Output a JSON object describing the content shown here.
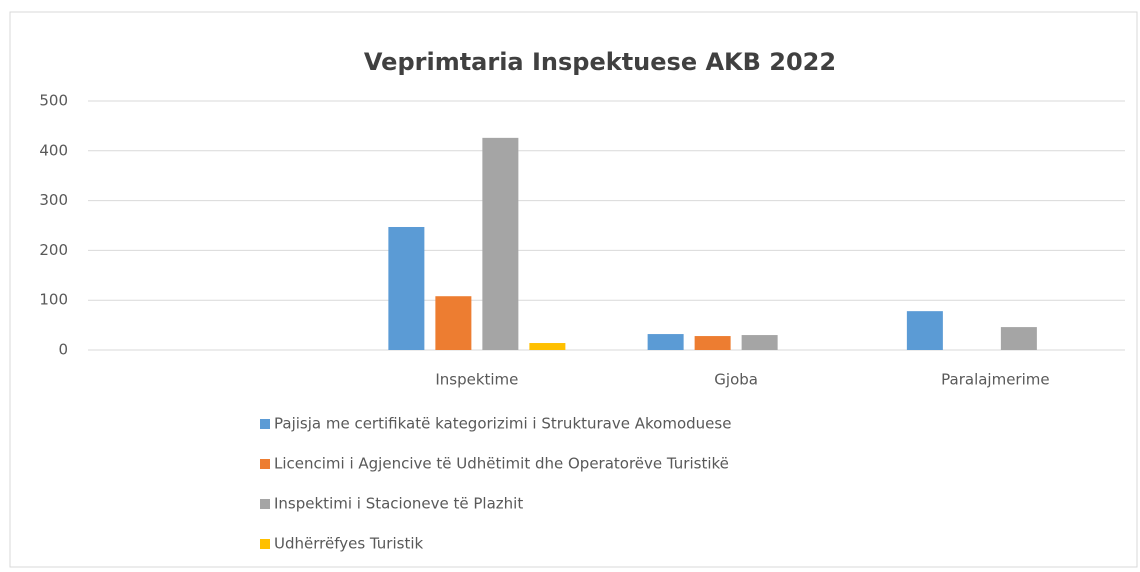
{
  "chart_data": {
    "type": "bar",
    "title": "Veprimtaria Inspektuese AKB 2022",
    "categories": [
      null,
      "Inspektime",
      "Gjoba",
      "Paralajmerime"
    ],
    "series": [
      {
        "name": "Pajisja me certifikatë kategorizimi  i Strukturave Akomoduese",
        "color": "#5b9bd5",
        "values": [
          null,
          247,
          32,
          78
        ]
      },
      {
        "name": "Licencimi i Agjencive të Udhëtimit dhe Operatorëve Turistikë",
        "color": "#ed7d31",
        "values": [
          null,
          108,
          28,
          null
        ]
      },
      {
        "name": "Inspektimi i Stacioneve të Plazhit",
        "color": "#a5a5a5",
        "values": [
          null,
          426,
          30,
          46
        ]
      },
      {
        "name": "Udhërrëfyes Turistik",
        "color": "#ffc000",
        "values": [
          null,
          14,
          null,
          null
        ]
      }
    ],
    "ylim": [
      0,
      500
    ],
    "yticks": [
      0,
      100,
      200,
      300,
      400,
      500
    ],
    "grid": true,
    "legend": "bottom"
  }
}
